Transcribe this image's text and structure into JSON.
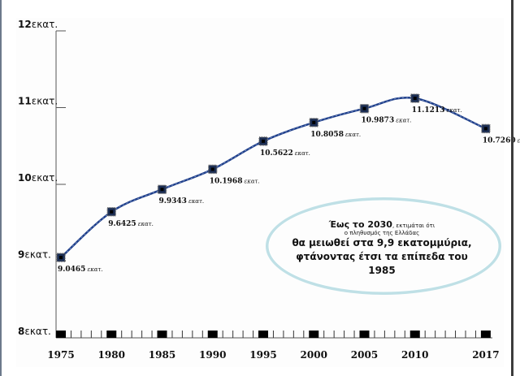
{
  "chart_data": {
    "type": "line",
    "title": "",
    "xlabel": "",
    "ylabel": "",
    "x": [
      1975,
      1980,
      1985,
      1990,
      1995,
      2000,
      2005,
      2010,
      2017
    ],
    "x_tick_labels": [
      "1975",
      "1980",
      "1985",
      "1990",
      "1995",
      "2000",
      "2005",
      "2010",
      "2017"
    ],
    "values": [
      9.0465,
      9.6425,
      9.9343,
      10.1968,
      10.5622,
      10.8058,
      10.9873,
      11.1213,
      10.726
    ],
    "data_labels": [
      "9.0465",
      "9.6425",
      "9.9343",
      "10.1968",
      "10.5622",
      "10.8058",
      "10.9873",
      "11.1213",
      "10.7260"
    ],
    "data_label_unit": "εκατ.",
    "y_ticks": [
      {
        "value": 12,
        "num": "12",
        "unit": "εκατ."
      },
      {
        "value": 11,
        "num": "11",
        "unit": "εκατ."
      },
      {
        "value": 10,
        "num": "10",
        "unit": "εκατ."
      },
      {
        "value": 9,
        "num": "9",
        "unit": "εκατ."
      },
      {
        "value": 8,
        "num": "8",
        "unit": "εκατ."
      }
    ],
    "ylim": [
      8,
      12
    ],
    "xlim": [
      1975,
      2017
    ],
    "line_color": "#1f3f8a",
    "grid": false
  },
  "annotation": {
    "line1_bold": "Έως το 2030",
    "line1_rest": ", εκτιμάται ότι",
    "line2": "ο πληθυσμός της Ελλάδας",
    "line3": "θα μειωθεί στα 9,9 εκατομμύρια,",
    "line4": "φτάνοντας έτσι τα επίπεδα του 1985"
  }
}
